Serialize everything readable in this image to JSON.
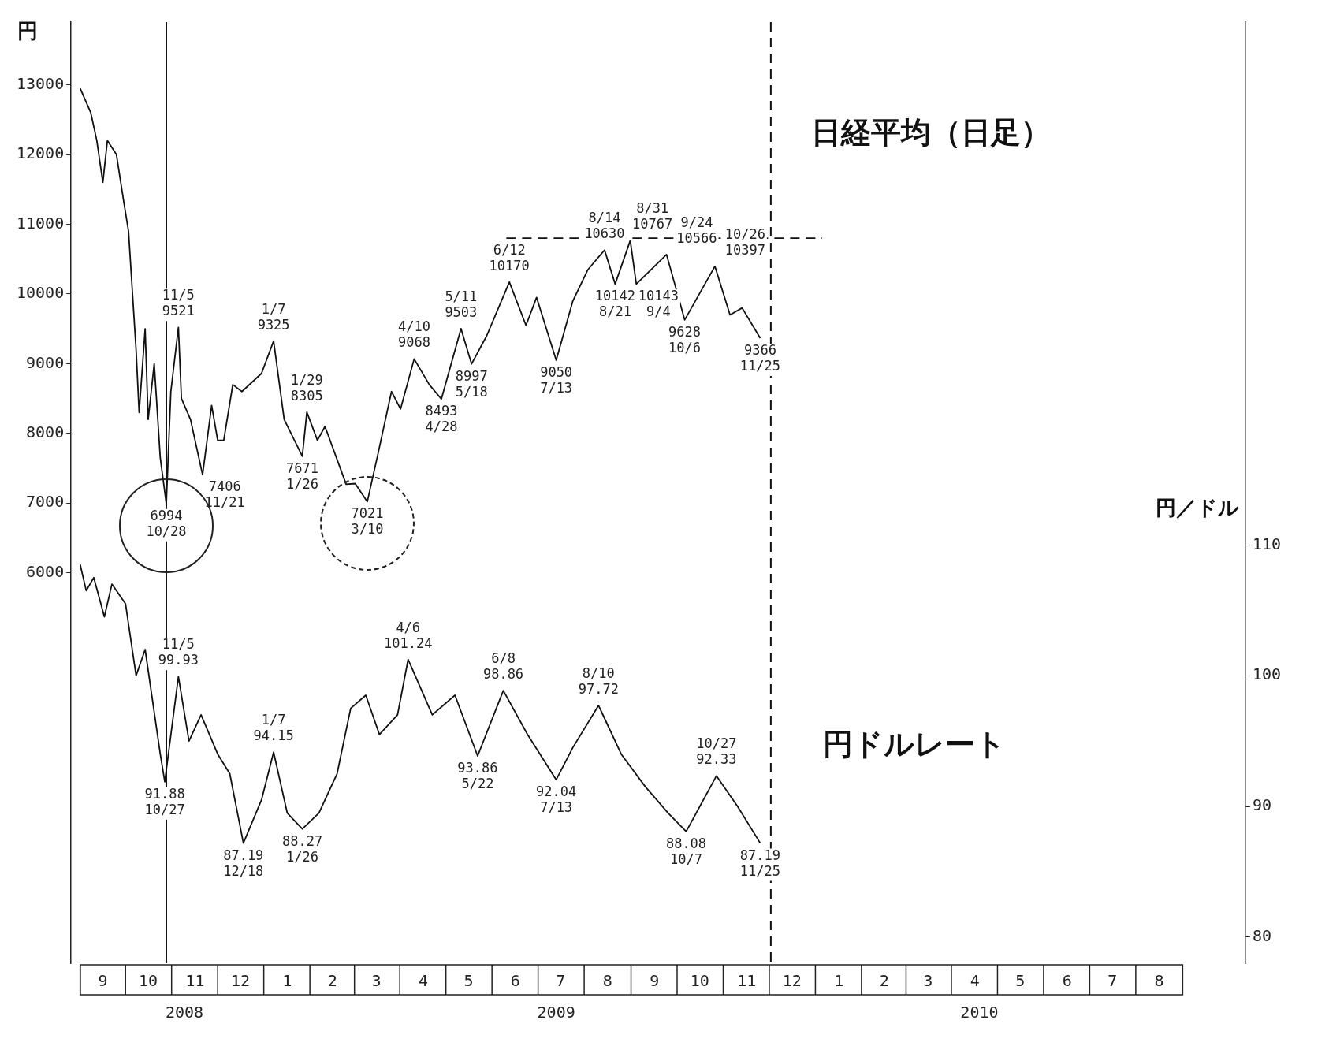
{
  "chart_data": {
    "type": "line",
    "ylabel": "円",
    "y2label": "円／ドル",
    "xlim": [
      "2008-08-26",
      "2010-10-12"
    ],
    "xticks": [
      {
        "value": "2008-09-16",
        "label": "9"
      },
      {
        "value": "2008-10-16",
        "label": "10"
      },
      {
        "value": "2008-11-16",
        "label": "11"
      },
      {
        "value": "2008-12-16",
        "label": "12"
      },
      {
        "value": "2009-01-16",
        "label": "1"
      },
      {
        "value": "2009-02-15",
        "label": "2"
      },
      {
        "value": "2009-03-16",
        "label": "3"
      },
      {
        "value": "2009-04-16",
        "label": "4"
      },
      {
        "value": "2009-05-16",
        "label": "5"
      },
      {
        "value": "2009-06-16",
        "label": "6"
      },
      {
        "value": "2009-07-16",
        "label": "7"
      },
      {
        "value": "2009-08-16",
        "label": "8"
      },
      {
        "value": "2009-09-16",
        "label": "9"
      },
      {
        "value": "2009-10-16",
        "label": "10"
      },
      {
        "value": "2009-11-16",
        "label": "11"
      },
      {
        "value": "2009-12-16",
        "label": "12"
      },
      {
        "value": "2010-01-16",
        "label": "1"
      },
      {
        "value": "2010-02-15",
        "label": "2"
      },
      {
        "value": "2010-03-16",
        "label": "3"
      },
      {
        "value": "2010-04-16",
        "label": "4"
      },
      {
        "value": "2010-05-16",
        "label": "5"
      },
      {
        "value": "2010-06-16",
        "label": "6"
      },
      {
        "value": "2010-07-16",
        "label": "7"
      },
      {
        "value": "2010-08-16",
        "label": "8"
      }
    ],
    "x2lim": [
      "2008-08-26",
      "2010-10-12"
    ],
    "x2ticks": [
      {
        "value": "2008-11-09",
        "label": "2008"
      },
      {
        "value": "2009-07-13",
        "label": "2009"
      },
      {
        "value": "2010-04-19",
        "label": "2010"
      }
    ],
    "ylim": [
      400,
      13900
    ],
    "yticks": [
      6000,
      7000,
      8000,
      9000,
      10000,
      11000,
      12000,
      13000
    ],
    "y2lim": [
      78,
      150
    ],
    "y2ticks": [
      80,
      90,
      100,
      110
    ],
    "legend": false,
    "marker": "none",
    "series": [
      {
        "name": "日経平均（日足）",
        "color": "#111111",
        "x": [
          "2008-09-01",
          "2008-09-08",
          "2008-09-12",
          "2008-09-16",
          "2008-09-19",
          "2008-09-25",
          "2008-09-30",
          "2008-10-03",
          "2008-10-08",
          "2008-10-10",
          "2008-10-14",
          "2008-10-16",
          "2008-10-20",
          "2008-10-24",
          "2008-10-28",
          "2008-10-31",
          "2008-11-05",
          "2008-11-07",
          "2008-11-13",
          "2008-11-21",
          "2008-11-27",
          "2008-12-01",
          "2008-12-05",
          "2008-12-11",
          "2008-12-17",
          "2008-12-30",
          "2009-01-07",
          "2009-01-14",
          "2009-01-26",
          "2009-01-29",
          "2009-02-05",
          "2009-02-10",
          "2009-02-24",
          "2009-03-02",
          "2009-03-10",
          "2009-03-17",
          "2009-03-26",
          "2009-04-01",
          "2009-04-10",
          "2009-04-20",
          "2009-04-28",
          "2009-05-11",
          "2009-05-18",
          "2009-05-28",
          "2009-06-12",
          "2009-06-23",
          "2009-06-30",
          "2009-07-13",
          "2009-07-24",
          "2009-08-03",
          "2009-08-14",
          "2009-08-21",
          "2009-08-31",
          "2009-09-04",
          "2009-09-24",
          "2009-10-06",
          "2009-10-26",
          "2009-11-05",
          "2009-11-13",
          "2009-11-25"
        ],
        "values": [
          12950,
          12600,
          12200,
          11600,
          12200,
          12000,
          11300,
          10900,
          9200,
          8300,
          9500,
          8200,
          9000,
          7650,
          6994,
          8600,
          9521,
          8500,
          8200,
          7406,
          8400,
          7900,
          7900,
          8700,
          8600,
          8860,
          9325,
          8200,
          7671,
          8305,
          7900,
          8100,
          7270,
          7280,
          7021,
          7700,
          8600,
          8350,
          9068,
          8700,
          8493,
          9503,
          8997,
          9400,
          10170,
          9550,
          9950,
          9050,
          9900,
          10350,
          10630,
          10142,
          10767,
          10143,
          10566,
          9628,
          10397,
          9700,
          9800,
          9366
        ],
        "value_labels": [
          null,
          null,
          null,
          null,
          null,
          null,
          null,
          null,
          null,
          null,
          null,
          null,
          null,
          null,
          "6994\n10/28",
          null,
          "11/5\n9521",
          null,
          null,
          "7406\n11/21",
          null,
          null,
          null,
          null,
          null,
          null,
          "1/7\n9325",
          null,
          "7671\n1/26",
          "1/29\n8305",
          null,
          null,
          null,
          null,
          "7021\n3/10",
          null,
          null,
          null,
          "4/10\n9068",
          null,
          "8493\n4/28",
          "5/11\n9503",
          "8997\n5/18",
          null,
          "6/12\n10170",
          null,
          null,
          "9050\n7/13",
          null,
          null,
          "8/14\n10630",
          "10142\n8/21",
          "8/31\n10767",
          "10143\n9/4",
          "9/24\n10566",
          "9628\n10/6",
          "10/26\n10397",
          null,
          null,
          "9366\n11/25"
        ]
      },
      {
        "name": "円ドルレート",
        "color": "#111111",
        "axis": "y2",
        "x": [
          "2008-09-01",
          "2008-09-05",
          "2008-09-10",
          "2008-09-17",
          "2008-09-22",
          "2008-10-01",
          "2008-10-08",
          "2008-10-14",
          "2008-10-24",
          "2008-10-27",
          "2008-11-05",
          "2008-11-12",
          "2008-11-20",
          "2008-12-01",
          "2008-12-09",
          "2008-12-18",
          "2008-12-30",
          "2009-01-07",
          "2009-01-16",
          "2009-01-26",
          "2009-02-06",
          "2009-02-18",
          "2009-02-27",
          "2009-03-09",
          "2009-03-18",
          "2009-03-30",
          "2009-04-06",
          "2009-04-22",
          "2009-05-07",
          "2009-05-22",
          "2009-06-08",
          "2009-06-24",
          "2009-07-13",
          "2009-07-24",
          "2009-08-10",
          "2009-08-25",
          "2009-09-10",
          "2009-09-25",
          "2009-10-07",
          "2009-10-27",
          "2009-11-10",
          "2009-11-25"
        ],
        "values": [
          108.5,
          106.5,
          107.5,
          104.5,
          107,
          105.5,
          100,
          102,
          94,
          91.88,
          99.93,
          95,
          97,
          94,
          92.5,
          87.19,
          90.5,
          94.15,
          89.5,
          88.27,
          89.5,
          92.5,
          97.5,
          98.5,
          95.5,
          97,
          101.24,
          97,
          98.5,
          93.86,
          98.86,
          95.5,
          92.04,
          94.5,
          97.72,
          94,
          91.5,
          89.5,
          88.08,
          92.33,
          90,
          87.19
        ],
        "value_labels": [
          null,
          null,
          null,
          null,
          null,
          null,
          null,
          null,
          null,
          "91.88\n10/27",
          "11/5\n99.93",
          null,
          null,
          null,
          null,
          "87.19\n12/18",
          null,
          "1/7\n94.15",
          null,
          "88.27\n1/26",
          null,
          null,
          null,
          null,
          null,
          null,
          "4/6\n101.24",
          null,
          null,
          "93.86\n5/22",
          "6/8\n98.86",
          null,
          "92.04\n7/13",
          null,
          "8/10\n97.72",
          null,
          null,
          null,
          "88.08\n10/7",
          "10/27\n92.33",
          null,
          "87.19\n11/25"
        ]
      },
      {
        "type": "line",
        "color": "#111111",
        "line_style": "dashed",
        "x": [
          "2009-06-10",
          "2010-01-05"
        ],
        "values": [
          10800,
          10800
        ]
      }
    ],
    "ref_lines": [
      {
        "axis": "x",
        "value": "2008-10-28",
        "color": "#111111",
        "line_style": "solid"
      },
      {
        "axis": "x",
        "value": "2009-12-02",
        "color": "#111111",
        "line_style": "dashed"
      }
    ]
  }
}
